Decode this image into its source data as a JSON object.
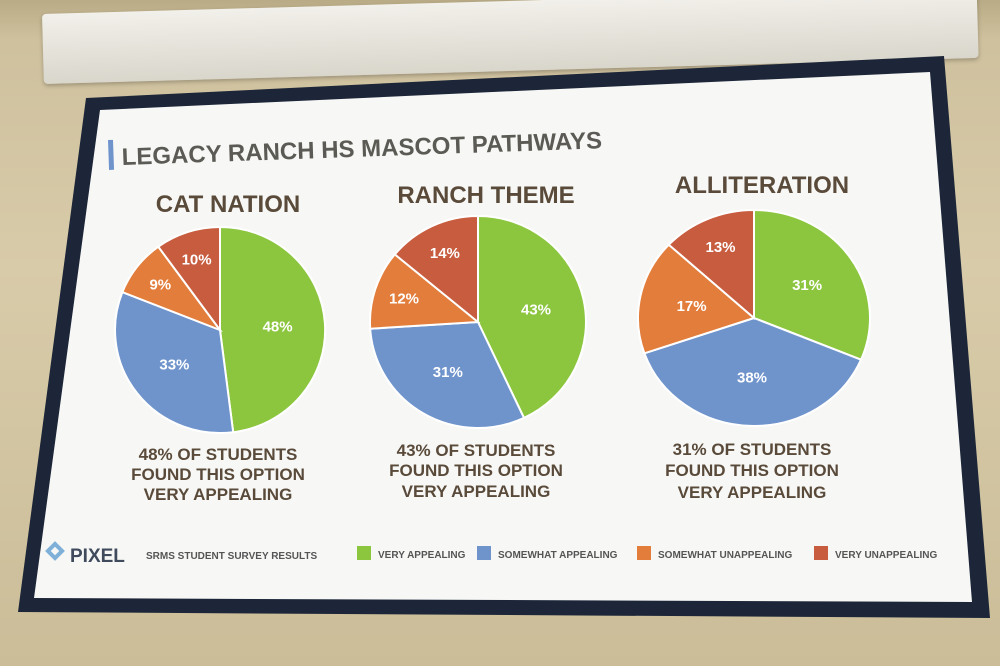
{
  "slide": {
    "title": "LEGACY RANCH HS MASCOT PATHWAYS",
    "footer": {
      "logo": "PIXEL",
      "source": "SRMS STUDENT SURVEY RESULTS"
    }
  },
  "chart_data": [
    {
      "type": "pie",
      "title": "CAT NATION",
      "categories": [
        "VERY APPEALING",
        "SOMEWHAT APPEALING",
        "SOMEWHAT UNAPPEALING",
        "VERY UNAPPEALING"
      ],
      "values": [
        48,
        33,
        9,
        10
      ],
      "labels": [
        "48%",
        "33%",
        "9%",
        "10%"
      ],
      "caption": [
        "48% OF STUDENTS",
        "FOUND THIS OPTION",
        "VERY APPEALING"
      ]
    },
    {
      "type": "pie",
      "title": "RANCH THEME",
      "categories": [
        "VERY APPEALING",
        "SOMEWHAT APPEALING",
        "SOMEWHAT UNAPPEALING",
        "VERY UNAPPEALING"
      ],
      "values": [
        43,
        31,
        12,
        14
      ],
      "labels": [
        "43%",
        "31%",
        "12%",
        "14%"
      ],
      "caption": [
        "43% OF STUDENTS",
        "FOUND THIS OPTION",
        "VERY APPEALING"
      ]
    },
    {
      "type": "pie",
      "title": "ALLITERATION",
      "categories": [
        "VERY APPEALING",
        "SOMEWHAT APPEALING",
        "SOMEWHAT UNAPPEALING",
        "VERY UNAPPEALING"
      ],
      "values": [
        31,
        38,
        17,
        13
      ],
      "labels": [
        "31%",
        "38%",
        "17%",
        "13%"
      ],
      "caption": [
        "31% OF STUDENTS",
        "FOUND THIS OPTION",
        "VERY APPEALING"
      ]
    }
  ],
  "legend": [
    {
      "label": "VERY APPEALING",
      "color": "#8cc63f"
    },
    {
      "label": "SOMEWHAT APPEALING",
      "color": "#6f94cc"
    },
    {
      "label": "SOMEWHAT UNAPPEALING",
      "color": "#e27d3b"
    },
    {
      "label": "VERY UNAPPEALING",
      "color": "#c75c3f"
    }
  ],
  "colors": {
    "title": "#5b5a54",
    "accent": "#6f94cc",
    "heading": "#5a4a3a"
  }
}
